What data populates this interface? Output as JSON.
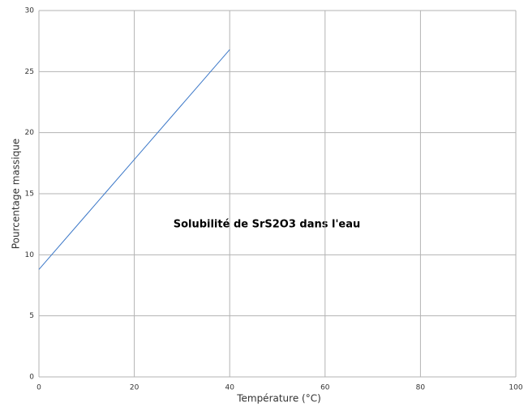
{
  "chart_data": {
    "type": "line",
    "title": "Solubilité de SrS2O3 dans l'eau",
    "x_label": "Température (°C)",
    "y_label": "Pourcentage massique",
    "x": [
      0,
      10,
      20,
      30,
      40
    ],
    "series": [
      {
        "name": "SrS2O3",
        "color": "#3c78c8",
        "values": [
          8.8,
          13.3,
          17.8,
          22.3,
          26.8
        ]
      }
    ],
    "xlim": [
      0,
      100
    ],
    "xticks": [
      0,
      20,
      40,
      60,
      80,
      100
    ],
    "ylim": [
      0,
      30
    ],
    "yticks": [
      0,
      5,
      10,
      15,
      20,
      25,
      30
    ],
    "grid": true
  }
}
